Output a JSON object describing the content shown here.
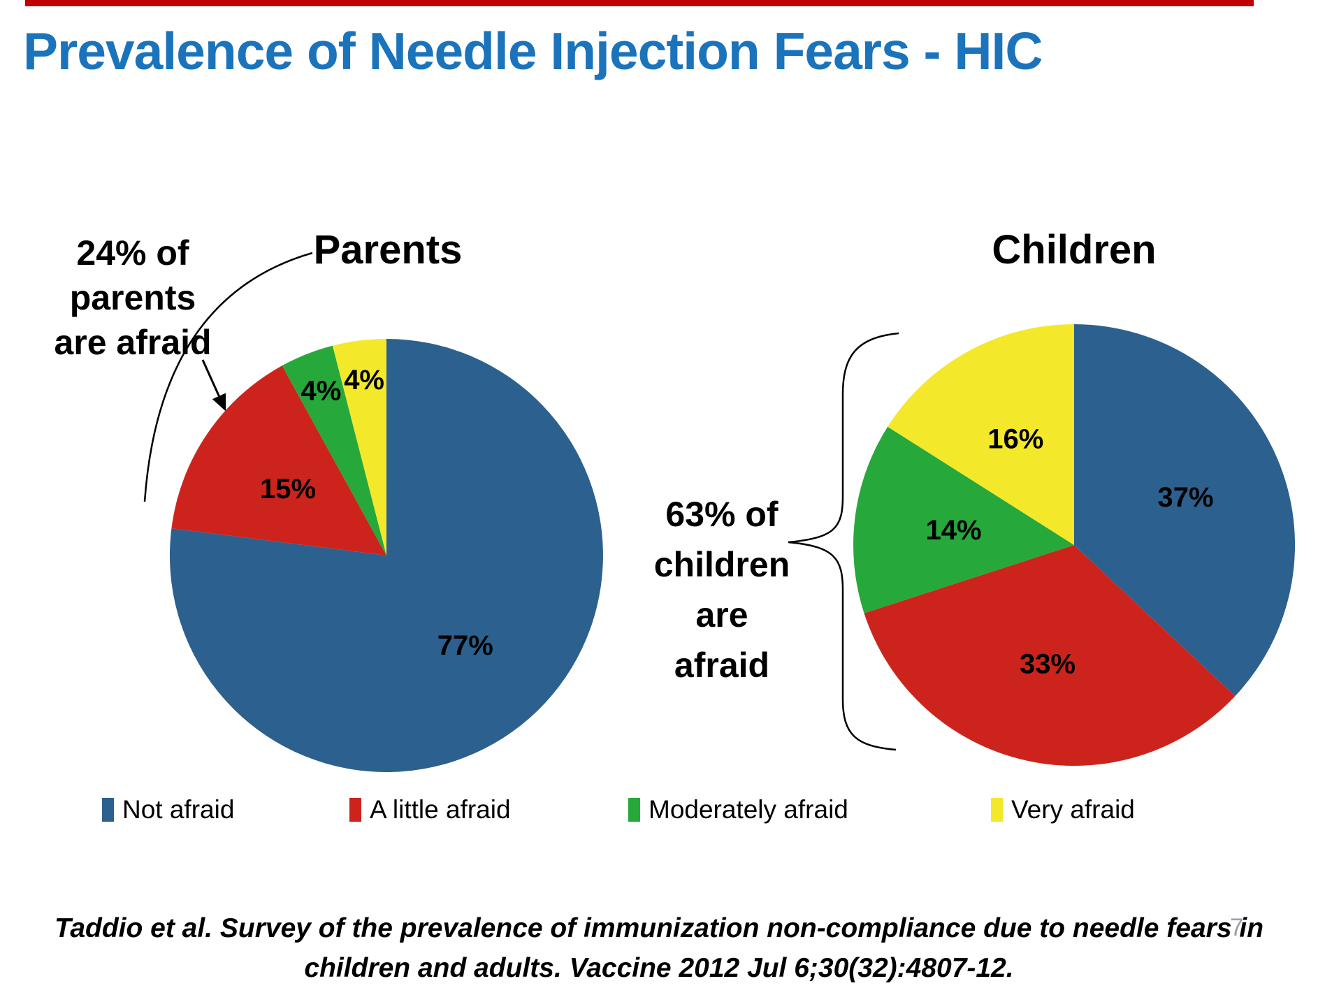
{
  "slide": {
    "title": "Prevalence of Needle Injection Fears - HIC",
    "title_color": "#1B74BB",
    "accent_bar_color": "#C00000",
    "page_number": "7",
    "page_number_color": "#9CA0A8",
    "citation": "Taddio et al. Survey of the prevalence of immunization non-compliance due to needle fears in\nchildren and adults. Vaccine 2012 Jul 6;30(32):4807-12."
  },
  "chart_data": [
    {
      "type": "pie",
      "title": "Parents",
      "labels": [
        "Not afraid",
        "A little afraid",
        "Moderately afraid",
        "Very afraid"
      ],
      "values": [
        77,
        15,
        4,
        4
      ],
      "display_labels": [
        "77%",
        "15%",
        "4%",
        "4%"
      ],
      "colors": [
        "#2C608E",
        "#CC241C",
        "#27A83B",
        "#F4E82B"
      ],
      "start_angle": "12 o'clock",
      "direction": "clockwise",
      "callout_note": "24% of\nparents\nare afraid",
      "callout_summary": "24% of parents are afraid"
    },
    {
      "type": "pie",
      "title": "Children",
      "labels": [
        "Not afraid",
        "A little afraid",
        "Moderately afraid",
        "Very afraid"
      ],
      "values": [
        37,
        33,
        14,
        16
      ],
      "display_labels": [
        "37%",
        "33%",
        "14%",
        "16%"
      ],
      "colors": [
        "#2C608E",
        "#CC241C",
        "#27A83B",
        "#F4E82B"
      ],
      "start_angle": "12 o'clock",
      "direction": "clockwise",
      "callout_note": "63% of\nchildren\nare\nafraid",
      "callout_summary": "63% of children are afraid"
    }
  ],
  "legend": {
    "position": "bottom",
    "items": [
      {
        "label": "Not afraid",
        "color": "#2C608E"
      },
      {
        "label": "A little afraid",
        "color": "#CC241C"
      },
      {
        "label": "Moderately afraid",
        "color": "#27A83B"
      },
      {
        "label": "Very afraid",
        "color": "#F4E82B"
      }
    ]
  }
}
